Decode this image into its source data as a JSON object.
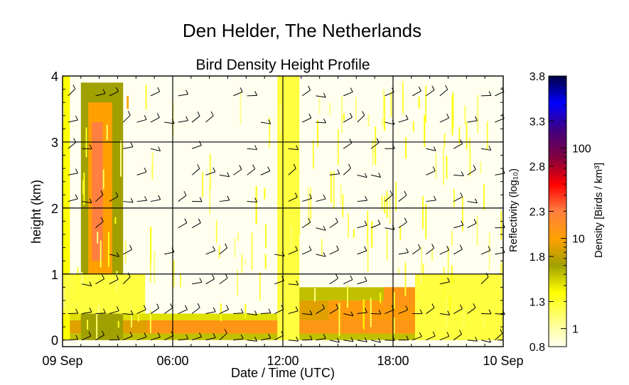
{
  "suptitle": "Den Helder, The Netherlands",
  "chart_data": {
    "type": "heatmap",
    "title": "Bird Density Height Profile",
    "xlabel": "Date / Time (UTC)",
    "ylabel": "height (km)",
    "x_range_hours": [
      0,
      24
    ],
    "xticks": [
      {
        "hour": 0,
        "label": "09 Sep"
      },
      {
        "hour": 6,
        "label": "06:00"
      },
      {
        "hour": 12,
        "label": "12:00"
      },
      {
        "hour": 18,
        "label": "18:00"
      },
      {
        "hour": 24,
        "label": "10 Sep"
      }
    ],
    "ylim": [
      -0.1,
      4.0
    ],
    "yticks": [
      0,
      1,
      2,
      3,
      4
    ],
    "grid": true,
    "colorbar": {
      "left_label": "Reflectivity (log₁₀)",
      "right_label": "Density [Birds / km³]",
      "left_range": [
        0.8,
        3.8
      ],
      "left_ticks": [
        "0.8",
        "1.3",
        "1.8",
        "2.3",
        "2.8",
        "3.3",
        "3.8"
      ],
      "right_ticks": [
        {
          "value": 1,
          "label": "1"
        },
        {
          "value": 10,
          "label": "10"
        },
        {
          "value": 100,
          "label": "100"
        }
      ],
      "colors": [
        "#fffff0",
        "#ffff80",
        "#ffff00",
        "#a0a000",
        "#ffa000",
        "#ff7f40",
        "#ff0000",
        "#800040",
        "#400080",
        "#0000ff",
        "#000040"
      ]
    },
    "density_regions": [
      {
        "h0": 0.0,
        "h1": 24.0,
        "z0": 0.0,
        "z1": 0.1,
        "level": 1.6
      },
      {
        "h0": 0.0,
        "h1": 24.0,
        "z0": 0.1,
        "z1": 0.3,
        "level": 1.9
      },
      {
        "h0": 4.6,
        "h1": 19.5,
        "z0": 0.1,
        "z1": 0.3,
        "level": 2.1
      },
      {
        "h0": 0.0,
        "h1": 24.0,
        "z0": 0.3,
        "z1": 0.4,
        "level": 1.5
      },
      {
        "h0": 12.0,
        "h1": 18.5,
        "z0": 0.3,
        "z1": 0.6,
        "level": 1.9
      },
      {
        "h0": 14.5,
        "h1": 19.5,
        "z0": 0.3,
        "z1": 0.6,
        "level": 2.05
      },
      {
        "h0": 12.0,
        "h1": 19.5,
        "z0": 0.6,
        "z1": 0.8,
        "level": 1.6
      },
      {
        "h0": 17.5,
        "h1": 19.2,
        "z0": 0.5,
        "z1": 0.8,
        "level": 2.1
      },
      {
        "h0": 1.0,
        "h1": 3.3,
        "z0": 0.0,
        "z1": 3.9,
        "level": 1.7
      },
      {
        "h0": 1.4,
        "h1": 2.7,
        "z0": 0.6,
        "z1": 3.6,
        "level": 2.0
      },
      {
        "h0": 1.6,
        "h1": 2.2,
        "z0": 1.2,
        "z1": 3.3,
        "level": 2.3
      },
      {
        "h0": 3.5,
        "h1": 3.6,
        "z0": 3.5,
        "z1": 3.7,
        "level": 2.0
      },
      {
        "h0": 0.0,
        "h1": 0.4,
        "z0": 0.0,
        "z1": 4.0,
        "level": 1.4
      },
      {
        "h0": 11.7,
        "h1": 12.9,
        "z0": 0.0,
        "z1": 4.0,
        "level": 1.25
      },
      {
        "h0": 19.2,
        "h1": 24.0,
        "z0": 0.0,
        "z1": 1.0,
        "level": 1.25
      },
      {
        "h0": 0.0,
        "h1": 4.5,
        "z0": 0.4,
        "z1": 1.0,
        "level": 1.25
      }
    ],
    "wind_barbs": {
      "heights_km": [
        0.0,
        0.4,
        0.85,
        1.3,
        1.7,
        2.1,
        2.5,
        2.9,
        3.3,
        3.7
      ],
      "time_step_hours": 0.75
    }
  }
}
